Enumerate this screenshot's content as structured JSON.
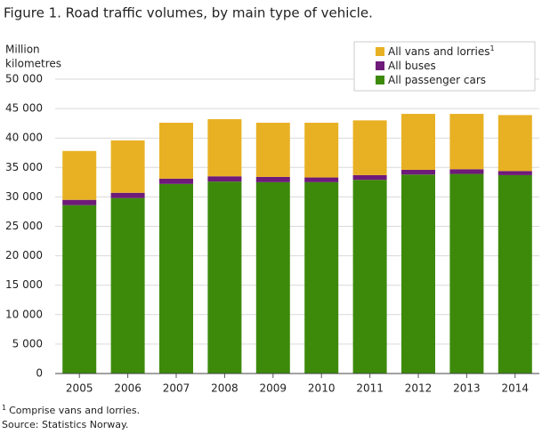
{
  "chart_data": {
    "type": "stacked_bar",
    "title": "Figure 1. Road traffic volumes, by main type of vehicle.",
    "y_label": [
      "Million",
      "kilometres"
    ],
    "categories": [
      "2005",
      "2006",
      "2007",
      "2008",
      "2009",
      "2010",
      "2011",
      "2012",
      "2013",
      "2014"
    ],
    "series": [
      {
        "name": "All passenger cars",
        "color": "#3d8a0b",
        "values": [
          28600,
          29800,
          32200,
          32600,
          32500,
          32500,
          32900,
          33800,
          33900,
          33700
        ]
      },
      {
        "name": "All buses",
        "color": "#6e1a79",
        "values": [
          900,
          900,
          900,
          900,
          900,
          800,
          800,
          800,
          800,
          700
        ]
      },
      {
        "name": "All vans and lorries",
        "color": "#e8b124",
        "values": [
          8300,
          8900,
          9500,
          9700,
          9200,
          9300,
          9300,
          9500,
          9400,
          9500
        ]
      }
    ],
    "ylim": [
      0,
      50000
    ],
    "yticks": [
      0,
      {
        "value": 5000,
        "label": "5 000"
      },
      {
        "value": 10000,
        "label": "10 000"
      },
      {
        "value": 15000,
        "label": "15 000"
      },
      {
        "value": 20000,
        "label": "20 000"
      },
      {
        "value": 25000,
        "label": "25 000"
      },
      {
        "value": 30000,
        "label": "30 000"
      },
      {
        "value": 35000,
        "label": "35 000"
      },
      {
        "value": 40000,
        "label": "40 000"
      },
      {
        "value": 45000,
        "label": "45 000"
      },
      {
        "value": 50000,
        "label": "50 000"
      }
    ],
    "grid": true,
    "legend_note_marker": "1",
    "footnote": "Comprise vans and lorries.",
    "source": "Source: Statistics Norway."
  }
}
